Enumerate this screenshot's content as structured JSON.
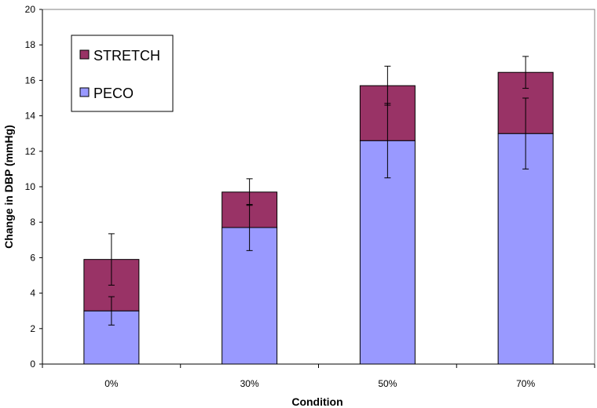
{
  "chart_data": {
    "type": "bar",
    "stacked": true,
    "title": "",
    "xlabel": "Condition",
    "ylabel": "Change in DBP (mmHg)",
    "categories": [
      "0%",
      "30%",
      "50%",
      "70%"
    ],
    "ylim": [
      0,
      20
    ],
    "yticks": [
      0,
      2,
      4,
      6,
      8,
      10,
      12,
      14,
      16,
      18,
      20
    ],
    "grid": false,
    "legend_position": "top-left",
    "series": [
      {
        "name": "PECO",
        "color": "#9999ff",
        "values": [
          3.0,
          7.7,
          12.6,
          13.0
        ],
        "error": [
          0.8,
          1.3,
          2.1,
          2.0
        ]
      },
      {
        "name": "STRETCH",
        "color": "#993366",
        "values": [
          2.9,
          2.0,
          3.1,
          3.45
        ],
        "error": [
          1.45,
          0.75,
          1.1,
          0.9
        ]
      }
    ]
  }
}
